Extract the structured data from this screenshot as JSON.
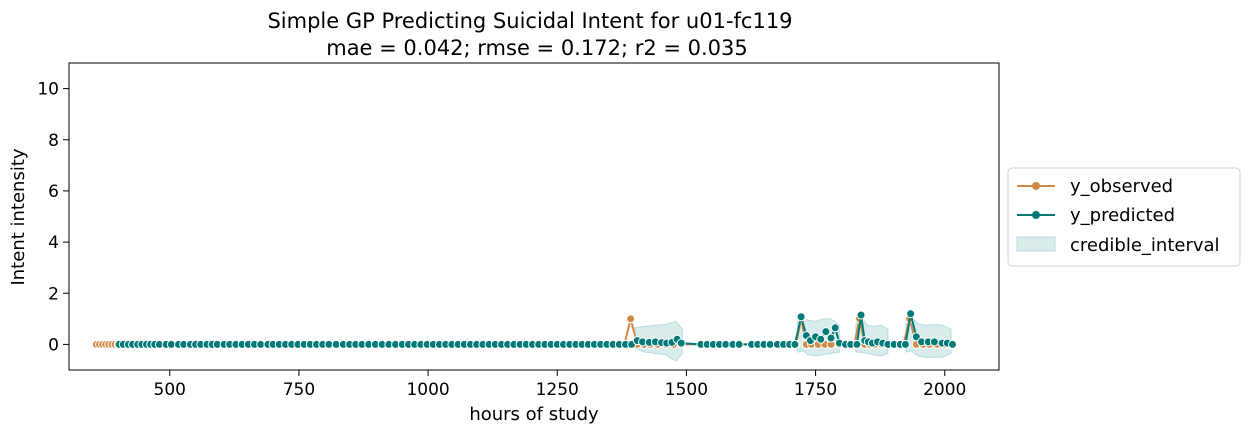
{
  "chart_data": {
    "type": "line",
    "title": "Simple GP Predicting Suicidal Intent for u01-fc119",
    "subtitle": "mae = 0.042; rmse = 0.172; r2 = 0.035",
    "xlabel": "hours of study",
    "ylabel": "Intent intensity",
    "xlim": [
      305,
      2105
    ],
    "ylim": [
      -1,
      11
    ],
    "xticks": [
      500,
      750,
      1000,
      1250,
      1500,
      1750,
      2000
    ],
    "yticks": [
      0,
      2,
      4,
      6,
      8,
      10
    ],
    "grid": false,
    "legend_placement": "outside-right",
    "colors": {
      "y_observed": "#d08a45",
      "y_predicted": "#007a78",
      "credible_interval": "#b8dcdc"
    },
    "series": [
      {
        "name": "y_observed",
        "type": "line",
        "marker": "circle",
        "points": [
          [
            358,
            0
          ],
          [
            364,
            0
          ],
          [
            370,
            0
          ],
          [
            376,
            0
          ],
          [
            382,
            0
          ],
          [
            388,
            0
          ],
          [
            394,
            0
          ],
          [
            400,
            0
          ],
          [
            1380,
            0
          ],
          [
            1392,
            1
          ],
          [
            1405,
            0
          ],
          [
            1418,
            0
          ],
          [
            1430,
            0
          ],
          [
            1445,
            0
          ],
          [
            1460,
            0
          ],
          [
            1475,
            0
          ],
          [
            1490,
            0
          ],
          [
            1712,
            0
          ],
          [
            1722,
            1
          ],
          [
            1732,
            0
          ],
          [
            1742,
            0
          ],
          [
            1755,
            0
          ],
          [
            1768,
            0
          ],
          [
            1780,
            0
          ],
          [
            1795,
            0
          ],
          [
            1825,
            0
          ],
          [
            1835,
            1
          ],
          [
            1845,
            0
          ],
          [
            1855,
            0
          ],
          [
            1865,
            0
          ],
          [
            1878,
            0
          ],
          [
            1890,
            0
          ],
          [
            1920,
            0
          ],
          [
            1932,
            1
          ],
          [
            1945,
            0
          ],
          [
            1958,
            0
          ],
          [
            1970,
            0
          ],
          [
            1985,
            0
          ],
          [
            2000,
            0
          ],
          [
            2012,
            0
          ]
        ]
      },
      {
        "name": "y_predicted",
        "type": "line",
        "marker": "circle",
        "points": [
          [
            402,
            0
          ],
          [
            410,
            0
          ],
          [
            420,
            0
          ],
          [
            428,
            0
          ],
          [
            438,
            0
          ],
          [
            446,
            0
          ],
          [
            455,
            0
          ],
          [
            463,
            0
          ],
          [
            471,
            0
          ],
          [
            480,
            0
          ],
          [
            493,
            0
          ],
          [
            503,
            0
          ],
          [
            517,
            0
          ],
          [
            527,
            0
          ],
          [
            540,
            0
          ],
          [
            550,
            0
          ],
          [
            560,
            0
          ],
          [
            572,
            0
          ],
          [
            582,
            0
          ],
          [
            592,
            0
          ],
          [
            605,
            0
          ],
          [
            616,
            0
          ],
          [
            628,
            0
          ],
          [
            640,
            0
          ],
          [
            652,
            0
          ],
          [
            664,
            0
          ],
          [
            676,
            0
          ],
          [
            690,
            0
          ],
          [
            700,
            0
          ],
          [
            712,
            0
          ],
          [
            724,
            0
          ],
          [
            736,
            0
          ],
          [
            748,
            0
          ],
          [
            760,
            0
          ],
          [
            772,
            0
          ],
          [
            784,
            0
          ],
          [
            796,
            0
          ],
          [
            808,
            0
          ],
          [
            822,
            0
          ],
          [
            836,
            0
          ],
          [
            848,
            0
          ],
          [
            860,
            0
          ],
          [
            872,
            0
          ],
          [
            885,
            0
          ],
          [
            898,
            0
          ],
          [
            911,
            0
          ],
          [
            924,
            0
          ],
          [
            937,
            0
          ],
          [
            950,
            0
          ],
          [
            962,
            0
          ],
          [
            974,
            0
          ],
          [
            986,
            0
          ],
          [
            998,
            0
          ],
          [
            1010,
            0
          ],
          [
            1022,
            0
          ],
          [
            1034,
            0
          ],
          [
            1046,
            0
          ],
          [
            1058,
            0
          ],
          [
            1070,
            0
          ],
          [
            1082,
            0
          ],
          [
            1094,
            0
          ],
          [
            1106,
            0
          ],
          [
            1118,
            0
          ],
          [
            1130,
            0
          ],
          [
            1142,
            0
          ],
          [
            1154,
            0
          ],
          [
            1166,
            0
          ],
          [
            1178,
            0
          ],
          [
            1190,
            0
          ],
          [
            1202,
            0
          ],
          [
            1214,
            0
          ],
          [
            1226,
            0
          ],
          [
            1238,
            0
          ],
          [
            1250,
            0
          ],
          [
            1262,
            0
          ],
          [
            1274,
            0
          ],
          [
            1286,
            0
          ],
          [
            1298,
            0
          ],
          [
            1310,
            0
          ],
          [
            1322,
            0
          ],
          [
            1334,
            0
          ],
          [
            1346,
            0
          ],
          [
            1358,
            0
          ],
          [
            1370,
            0
          ],
          [
            1382,
            0
          ],
          [
            1394,
            0
          ],
          [
            1405,
            0.15
          ],
          [
            1415,
            0.1
          ],
          [
            1428,
            0.08
          ],
          [
            1440,
            0.1
          ],
          [
            1452,
            0.07
          ],
          [
            1462,
            0.05
          ],
          [
            1472,
            0.08
          ],
          [
            1482,
            0.2
          ],
          [
            1490,
            0.05
          ],
          [
            1528,
            0
          ],
          [
            1540,
            0
          ],
          [
            1552,
            0
          ],
          [
            1564,
            0
          ],
          [
            1576,
            0
          ],
          [
            1590,
            0
          ],
          [
            1602,
            0
          ],
          [
            1626,
            0
          ],
          [
            1638,
            0
          ],
          [
            1650,
            0
          ],
          [
            1662,
            0
          ],
          [
            1676,
            0
          ],
          [
            1688,
            0
          ],
          [
            1700,
            0
          ],
          [
            1710,
            0
          ],
          [
            1722,
            1.08
          ],
          [
            1732,
            0.35
          ],
          [
            1740,
            0.15
          ],
          [
            1750,
            0.3
          ],
          [
            1760,
            0.2
          ],
          [
            1770,
            0.5
          ],
          [
            1780,
            0.25
          ],
          [
            1788,
            0.65
          ],
          [
            1796,
            0.05
          ],
          [
            1808,
            0
          ],
          [
            1818,
            0
          ],
          [
            1830,
            0
          ],
          [
            1838,
            1.15
          ],
          [
            1845,
            0.15
          ],
          [
            1852,
            0.1
          ],
          [
            1860,
            0.05
          ],
          [
            1870,
            0.1
          ],
          [
            1880,
            0.05
          ],
          [
            1890,
            0
          ],
          [
            1902,
            0
          ],
          [
            1914,
            0
          ],
          [
            1924,
            0
          ],
          [
            1934,
            1.2
          ],
          [
            1945,
            0.3
          ],
          [
            1955,
            0.1
          ],
          [
            1968,
            0.1
          ],
          [
            1980,
            0.1
          ],
          [
            1995,
            0.05
          ],
          [
            2005,
            0.05
          ],
          [
            2015,
            0
          ]
        ]
      }
    ],
    "credible_interval": {
      "name": "credible_interval",
      "segments": [
        {
          "upper": [
            [
              1400,
              0.65
            ],
            [
              1420,
              0.7
            ],
            [
              1440,
              0.75
            ],
            [
              1460,
              0.78
            ],
            [
              1470,
              0.85
            ],
            [
              1480,
              0.9
            ],
            [
              1492,
              0.6
            ]
          ],
          "lower": [
            [
              1400,
              -0.15
            ],
            [
              1420,
              -0.3
            ],
            [
              1440,
              -0.35
            ],
            [
              1460,
              -0.4
            ],
            [
              1470,
              -0.55
            ],
            [
              1480,
              -0.65
            ],
            [
              1492,
              -0.35
            ]
          ]
        },
        {
          "upper": [
            [
              1715,
              0.9
            ],
            [
              1725,
              1.1
            ],
            [
              1735,
              0.95
            ],
            [
              1750,
              0.9
            ],
            [
              1765,
              1.0
            ],
            [
              1780,
              1.0
            ],
            [
              1796,
              0.75
            ]
          ],
          "lower": [
            [
              1715,
              -0.3
            ],
            [
              1725,
              -0.25
            ],
            [
              1735,
              -0.4
            ],
            [
              1750,
              -0.45
            ],
            [
              1765,
              -0.4
            ],
            [
              1780,
              -0.35
            ],
            [
              1796,
              -0.3
            ]
          ]
        },
        {
          "upper": [
            [
              1828,
              0.8
            ],
            [
              1838,
              1.1
            ],
            [
              1850,
              0.75
            ],
            [
              1862,
              0.7
            ],
            [
              1876,
              0.75
            ],
            [
              1890,
              0.6
            ]
          ],
          "lower": [
            [
              1828,
              -0.3
            ],
            [
              1838,
              -0.3
            ],
            [
              1850,
              -0.35
            ],
            [
              1862,
              -0.4
            ],
            [
              1876,
              -0.45
            ],
            [
              1890,
              -0.35
            ]
          ]
        },
        {
          "upper": [
            [
              1925,
              0.8
            ],
            [
              1935,
              1.1
            ],
            [
              1948,
              0.8
            ],
            [
              1962,
              0.75
            ],
            [
              1978,
              0.78
            ],
            [
              1995,
              0.75
            ],
            [
              2012,
              0.6
            ]
          ],
          "lower": [
            [
              1925,
              -0.3
            ],
            [
              1935,
              -0.25
            ],
            [
              1948,
              -0.45
            ],
            [
              1962,
              -0.5
            ],
            [
              1978,
              -0.5
            ],
            [
              1995,
              -0.5
            ],
            [
              2012,
              -0.35
            ]
          ]
        }
      ]
    },
    "legend": [
      "y_observed",
      "y_predicted",
      "credible_interval"
    ]
  }
}
